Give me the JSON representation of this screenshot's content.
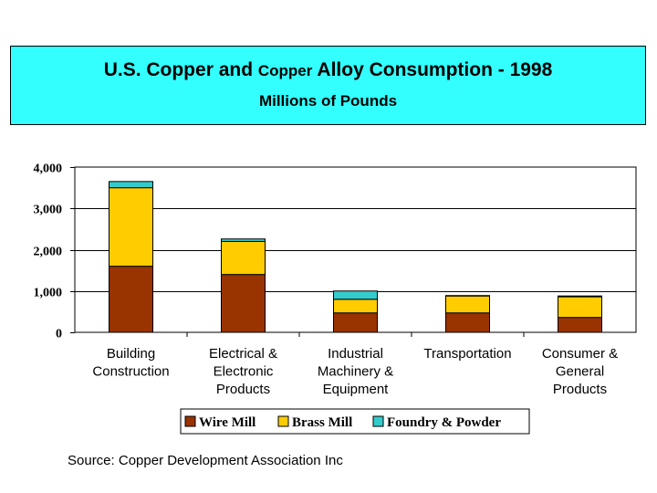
{
  "title": {
    "part1": "U.S. Copper and ",
    "part2": "Copper",
    "part3": " Alloy Consumption - 1998",
    "subtitle": "Millions of Pounds"
  },
  "source": "Source: Copper Development Association Inc",
  "chart_data": {
    "type": "bar",
    "stacked": true,
    "categories": [
      [
        "Building",
        "Construction"
      ],
      [
        "Electrical &",
        "Electronic",
        "Products"
      ],
      [
        "Industrial",
        "Machinery &",
        "Equipment"
      ],
      [
        "Transportation"
      ],
      [
        "Consumer &",
        "General",
        "Products"
      ]
    ],
    "series": [
      {
        "name": "Wire Mill",
        "color": "#993300",
        "values": [
          1600,
          1400,
          470,
          470,
          360
        ]
      },
      {
        "name": "Brass Mill",
        "color": "#ffcc00",
        "values": [
          1900,
          800,
          330,
          410,
          500
        ]
      },
      {
        "name": "Foundry & Powder",
        "color": "#33cccc",
        "values": [
          150,
          60,
          200,
          10,
          20
        ]
      }
    ],
    "ylim": [
      0,
      4000
    ],
    "yticks": [
      "0",
      "1,000",
      "2,000",
      "3,000",
      "4,000"
    ],
    "grid": true,
    "legend_position": "bottom"
  }
}
